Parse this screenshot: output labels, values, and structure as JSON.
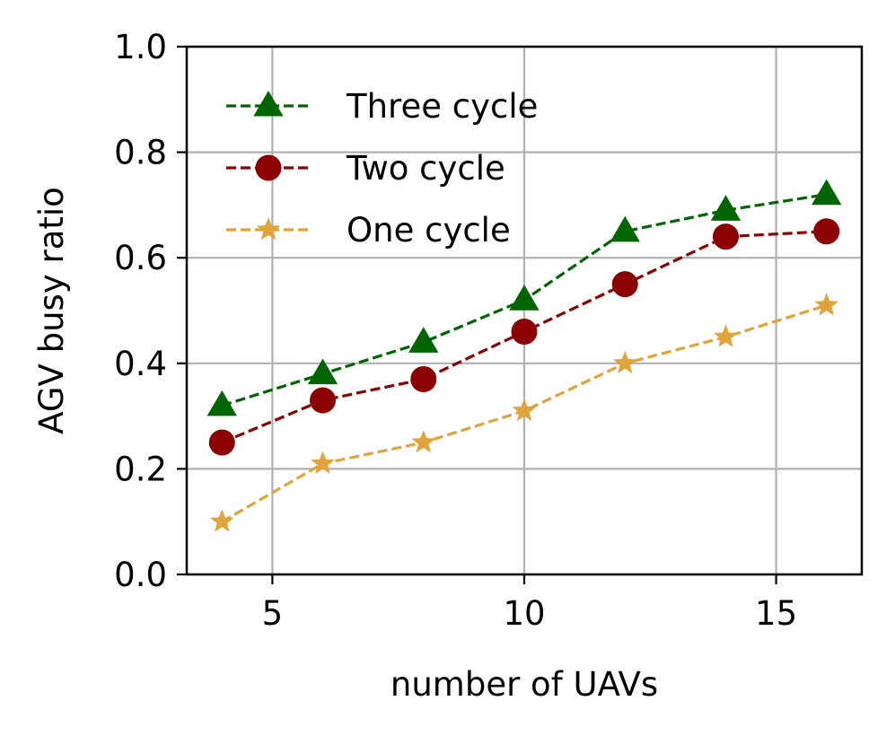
{
  "chart_data": {
    "type": "line",
    "xlabel": "number of UAVs",
    "ylabel": "AGV busy ratio",
    "xlim": [
      3.3,
      16.7
    ],
    "ylim": [
      0.0,
      1.0
    ],
    "xticks": [
      5,
      10,
      15
    ],
    "yticks": [
      0.0,
      0.2,
      0.4,
      0.6,
      0.8,
      1.0
    ],
    "xtick_labels": [
      "5",
      "10",
      "15"
    ],
    "ytick_labels": [
      "0.0",
      "0.2",
      "0.4",
      "0.6",
      "0.8",
      "1.0"
    ],
    "grid": true,
    "legend": {
      "placement": "top-left",
      "frame": false
    },
    "x": [
      4,
      6,
      8,
      10,
      12,
      14,
      16
    ],
    "series": [
      {
        "name": "Three cycle",
        "values": [
          0.32,
          0.38,
          0.44,
          0.52,
          0.65,
          0.69,
          0.72
        ],
        "color": "#006400",
        "marker": "triangle",
        "line_style": "dashed"
      },
      {
        "name": "Two cycle",
        "values": [
          0.25,
          0.33,
          0.37,
          0.46,
          0.55,
          0.64,
          0.65
        ],
        "color": "#8b0000",
        "marker": "circle",
        "line_style": "dashed"
      },
      {
        "name": "One cycle",
        "values": [
          0.1,
          0.21,
          0.25,
          0.31,
          0.4,
          0.45,
          0.51
        ],
        "color": "#e0a43c",
        "marker": "star",
        "line_style": "dashed"
      }
    ]
  }
}
